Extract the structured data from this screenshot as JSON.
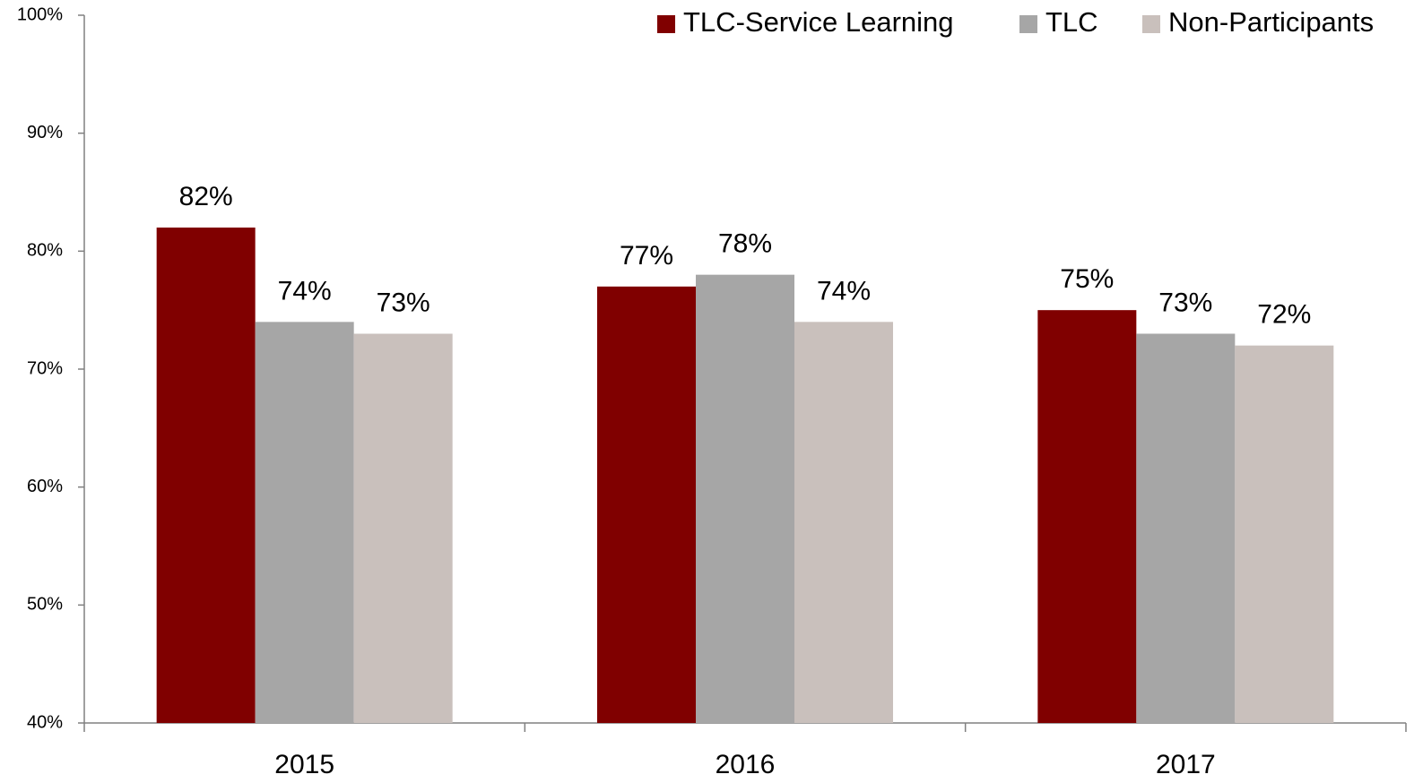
{
  "chart_data": {
    "type": "bar",
    "categories": [
      "2015",
      "2016",
      "2017"
    ],
    "series": [
      {
        "name": "TLC-Service Learning",
        "color": "#800000",
        "values": [
          82,
          77,
          75
        ],
        "value_labels": [
          "82%",
          "77%",
          "75%"
        ]
      },
      {
        "name": "TLC",
        "color": "#a6a6a6",
        "values": [
          74,
          78,
          73
        ],
        "value_labels": [
          "74%",
          "78%",
          "73%"
        ]
      },
      {
        "name": "Non-Participants",
        "color": "#c9c0bc",
        "values": [
          73,
          74,
          72
        ],
        "value_labels": [
          "73%",
          "74%",
          "72%"
        ]
      }
    ],
    "ylim": [
      40,
      100
    ],
    "yticks": [
      {
        "value": 40,
        "label": "40%"
      },
      {
        "value": 50,
        "label": "50%"
      },
      {
        "value": 60,
        "label": "60%"
      },
      {
        "value": 70,
        "label": "70%"
      },
      {
        "value": 80,
        "label": "80%"
      },
      {
        "value": 90,
        "label": "90%"
      },
      {
        "value": 100,
        "label": "100%"
      }
    ],
    "legend": "top-right"
  }
}
